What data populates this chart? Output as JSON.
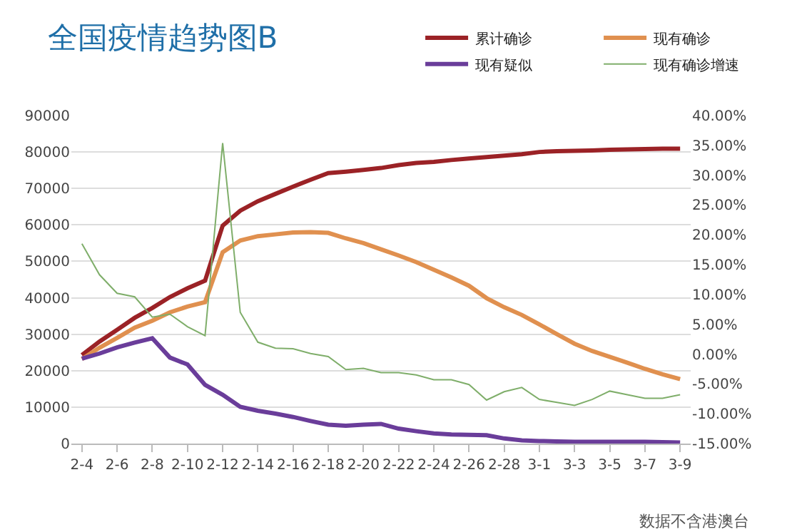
{
  "chart_data": {
    "type": "line",
    "title": "全国疫情趋势图B",
    "categories": [
      "2-4",
      null,
      "2-6",
      null,
      "2-8",
      null,
      "2-10",
      null,
      "2-12",
      null,
      "2-14",
      null,
      "2-16",
      null,
      "2-18",
      null,
      "2-20",
      null,
      "2-22",
      null,
      "2-24",
      null,
      "2-26",
      null,
      "2-28",
      null,
      "3-1",
      null,
      "3-3",
      null,
      "3-5",
      null,
      "3-7",
      null,
      "3-9"
    ],
    "series": [
      {
        "name": "累计确诊",
        "color": "#9b2226",
        "values": [
          24300,
          28000,
          31200,
          34500,
          37200,
          40200,
          42600,
          44700,
          59800,
          63900,
          66500,
          68500,
          70500,
          72400,
          74200,
          74600,
          75100,
          75600,
          76400,
          77000,
          77300,
          77800,
          78200,
          78600,
          79000,
          79400,
          80000,
          80200,
          80300,
          80400,
          80600,
          80700,
          80800,
          80900,
          80900
        ]
      },
      {
        "name": "现有确诊",
        "color": "#e0904f",
        "values": [
          23200,
          26300,
          29000,
          31800,
          33700,
          36000,
          37600,
          38800,
          52500,
          55700,
          56900,
          57400,
          57900,
          58000,
          57800,
          56300,
          55000,
          53300,
          51600,
          49800,
          47700,
          45600,
          43300,
          39900,
          37400,
          35300,
          32700,
          30000,
          27400,
          25400,
          23800,
          22200,
          20500,
          19000,
          17700
        ]
      },
      {
        "name": "现有疑似",
        "color": "#6a3d9a",
        "values": [
          23300,
          24700,
          26400,
          27700,
          28900,
          23600,
          21700,
          16100,
          13400,
          10100,
          9000,
          8200,
          7300,
          6200,
          5200,
          4900,
          5200,
          5400,
          4100,
          3400,
          2800,
          2500,
          2400,
          2300,
          1400,
          900,
          700,
          600,
          500,
          500,
          500,
          500,
          500,
          400,
          300
        ]
      },
      {
        "name": "现有确诊增速",
        "color": "#7fae6a",
        "axis": "y2",
        "values": [
          18.5,
          13.3,
          10.2,
          9.6,
          6.2,
          6.7,
          4.6,
          3.1,
          35.4,
          7,
          2,
          1,
          0.9,
          0.1,
          -0.4,
          -2.6,
          -2.4,
          -3.1,
          -3.1,
          -3.5,
          -4.3,
          -4.3,
          -5.1,
          -7.7,
          -6.3,
          -5.6,
          -7.6,
          -8.1,
          -8.6,
          -7.6,
          -6.2,
          -6.8,
          -7.4,
          -7.4,
          -6.8
        ]
      }
    ],
    "ylim": [
      0,
      90000
    ],
    "yticks": [
      0,
      10000,
      20000,
      30000,
      40000,
      50000,
      60000,
      70000,
      80000,
      90000
    ],
    "y2lim": [
      -15,
      40
    ],
    "y2ticks": [
      {
        "value": -15,
        "label": "-15.00%"
      },
      {
        "value": -10,
        "label": "-10.00%"
      },
      {
        "value": -5,
        "label": "-5.00%"
      },
      {
        "value": 0,
        "label": "0.00%"
      },
      {
        "value": 5,
        "label": "5.00%"
      },
      {
        "value": 10,
        "label": "10.00%"
      },
      {
        "value": 15,
        "label": "15.00%"
      },
      {
        "value": 20,
        "label": "20.00%"
      },
      {
        "value": 25,
        "label": "25.00%"
      },
      {
        "value": 30,
        "label": "30.00%"
      },
      {
        "value": 35,
        "label": "35.00%"
      },
      {
        "value": 40,
        "label": "40.00%"
      }
    ],
    "grid": "y",
    "legend": "top right",
    "marker": "none",
    "line_style": "solid",
    "annotations": [
      "数据不含港澳台"
    ]
  }
}
